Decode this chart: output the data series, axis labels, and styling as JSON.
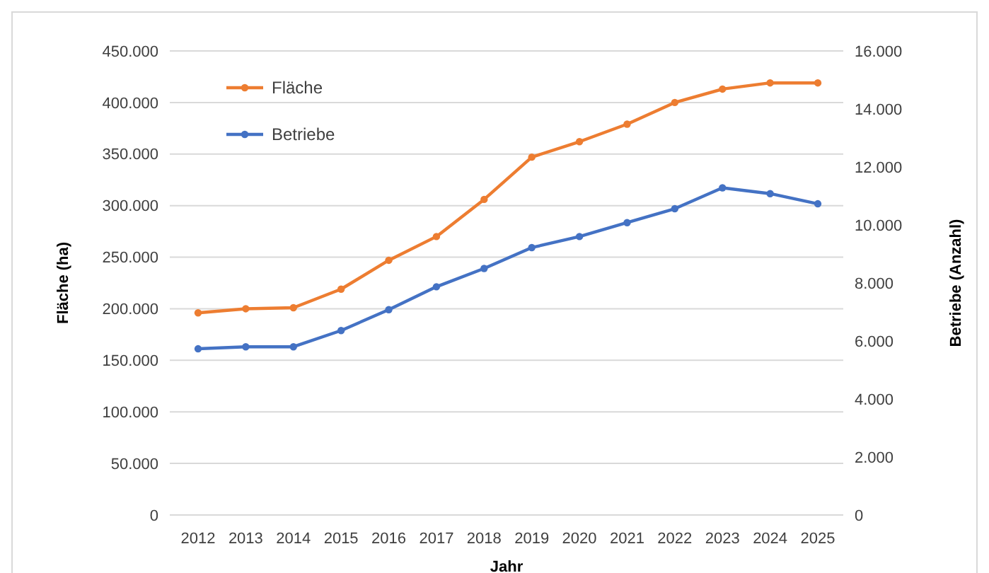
{
  "chart_data": {
    "type": "line",
    "xlabel": "Jahr",
    "ylabel": "Fläche (ha)",
    "y2label": "Betriebe (Anzahl)",
    "categories": [
      "2012",
      "2013",
      "2014",
      "2015",
      "2016",
      "2017",
      "2018",
      "2019",
      "2020",
      "2021",
      "2022",
      "2023",
      "2024",
      "2025"
    ],
    "series": [
      {
        "name": "Fläche",
        "color": "#ed7d31",
        "values": [
          196000,
          200000,
          201000,
          219000,
          247000,
          270000,
          306000,
          347000,
          362000,
          379000,
          400000,
          413000,
          419000,
          419000
        ]
      },
      {
        "name": "Betriebe",
        "color": "#4472c4",
        "axis": "y2",
        "values": [
          5730,
          5800,
          5800,
          6360,
          7080,
          7870,
          8500,
          9220,
          9600,
          10080,
          10560,
          11280,
          11080,
          10730
        ]
      }
    ],
    "ylim": [
      0,
      450000
    ],
    "yticks": [
      0,
      {
        "value": 50000,
        "label": "50.000"
      },
      {
        "value": 100000,
        "label": "100.000"
      },
      {
        "value": 150000,
        "label": "150.000"
      },
      {
        "value": 200000,
        "label": "200.000"
      },
      {
        "value": 250000,
        "label": "250.000"
      },
      {
        "value": 300000,
        "label": "300.000"
      },
      {
        "value": 350000,
        "label": "350.000"
      },
      {
        "value": 400000,
        "label": "400.000"
      },
      {
        "value": 450000,
        "label": "450.000"
      }
    ],
    "y2lim": [
      0,
      16000
    ],
    "y2ticks": [
      0,
      {
        "value": 2000,
        "label": "2.000"
      },
      {
        "value": 4000,
        "label": "4.000"
      },
      {
        "value": 6000,
        "label": "6.000"
      },
      {
        "value": 8000,
        "label": "8.000"
      },
      {
        "value": 10000,
        "label": "10.000"
      },
      {
        "value": 12000,
        "label": "12.000"
      },
      {
        "value": 14000,
        "label": "14.000"
      },
      {
        "value": 16000,
        "label": "16.000"
      }
    ],
    "grid": "y",
    "legend": "top left",
    "marker": "circle",
    "line_style": "solid"
  }
}
